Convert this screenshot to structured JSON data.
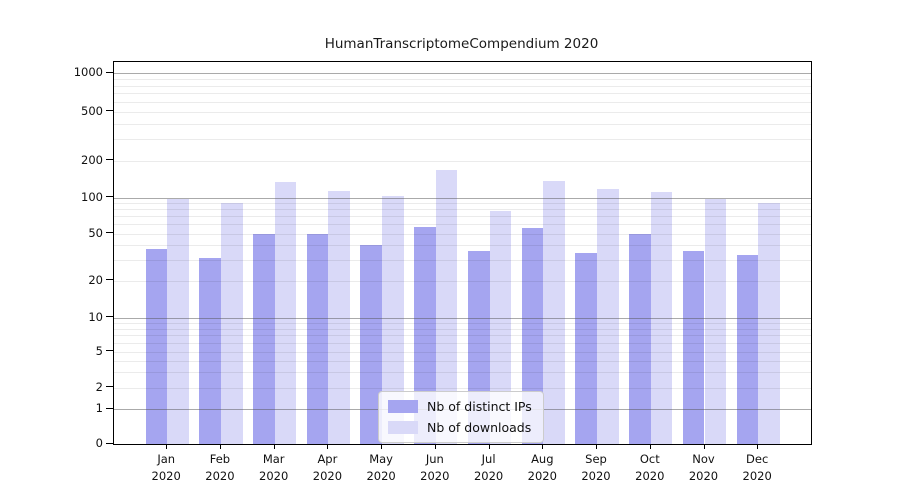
{
  "chart_data": {
    "type": "bar",
    "title": "HumanTranscriptomeCompendium 2020",
    "categories": [
      "Jan 2020",
      "Feb 2020",
      "Mar 2020",
      "Apr 2020",
      "May 2020",
      "Jun 2020",
      "Jul 2020",
      "Aug 2020",
      "Sep 2020",
      "Oct 2020",
      "Nov 2020",
      "Dec 2020"
    ],
    "series": [
      {
        "name": "Nb of distinct IPs",
        "color": "#a5a5f0",
        "values": [
          37,
          31,
          50,
          50,
          40,
          57,
          36,
          56,
          34,
          50,
          36,
          33
        ]
      },
      {
        "name": "Nb of downloads",
        "color": "#d9d9f8",
        "values": [
          98,
          91,
          135,
          114,
          104,
          167,
          78,
          137,
          117,
          112,
          98,
          90
        ]
      }
    ],
    "yscale": "symlog",
    "y_tick_labels": [
      "0",
      "1",
      "2",
      "5",
      "10",
      "20",
      "50",
      "100",
      "200",
      "500",
      "1000"
    ],
    "ylim": [
      0,
      1300
    ],
    "xlabel": "",
    "ylabel": "",
    "grid": "horizontal major+minor",
    "legend": {
      "position": "lower center inside",
      "entries": [
        "Nb of distinct IPs",
        "Nb of downloads"
      ]
    }
  }
}
